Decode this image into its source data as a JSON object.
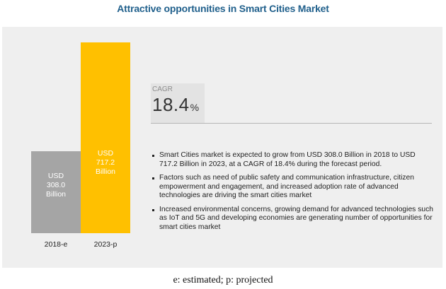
{
  "title": "Attractive opportunities in Smart Cities Market",
  "cagr": {
    "label": "CAGR",
    "value": "18.4",
    "unit": "%"
  },
  "bullets": [
    "Smart Cities market is expected to grow from USD 308.0 Billion in 2018 to USD 717.2 Billion in 2023, at a CAGR of 18.4% during the forecast period.",
    "Factors such as need of public safety and communication infrastructure, citizen empowerment and engagement, and increased adoption rate of advanced technologies are driving the smart cities market",
    "Increased environmental concerns, growing demand for advanced technologies such as IoT and 5G and developing economies are generating number of opportunities for smart cities market"
  ],
  "footnote": "e: estimated; p: projected",
  "colors": {
    "bar_2018": "#a5a5a5",
    "bar_2023": "#ffc000",
    "title": "#1f5f8b"
  },
  "chart_data": {
    "type": "bar",
    "categories": [
      "2018-e",
      "2023-p"
    ],
    "values": [
      308.0,
      717.2
    ],
    "bar_labels": [
      [
        "USD",
        "308.0",
        "Billion"
      ],
      [
        "USD",
        "717.2",
        "Billion"
      ]
    ],
    "unit": "USD Billion"
  }
}
